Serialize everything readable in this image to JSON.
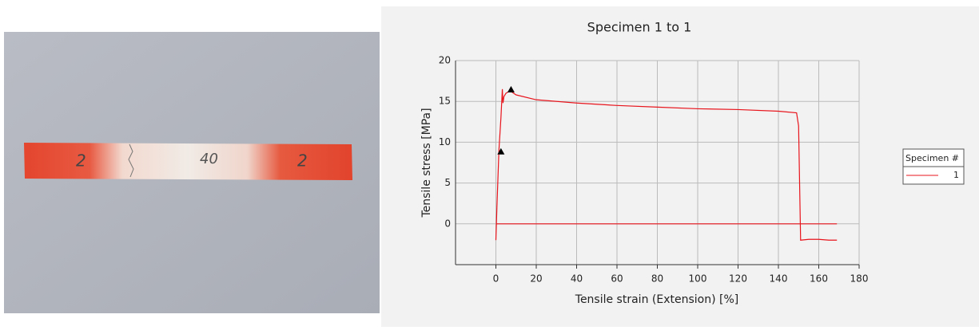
{
  "photo": {
    "marks": [
      "2",
      "40",
      "2"
    ]
  },
  "chart_data": {
    "type": "line",
    "title": "Specimen 1 to 1",
    "x_label": "Tensile strain (Extension) [%]",
    "y_label": "Tensile stress [MPa]",
    "x": [
      0,
      0.5,
      1.5,
      2.5,
      3.2,
      3.5,
      4,
      5,
      7,
      10,
      20,
      40,
      60,
      80,
      100,
      120,
      140,
      149,
      150,
      151,
      155,
      160,
      165,
      169,
      null,
      0,
      169
    ],
    "series": [
      {
        "name": "1",
        "color": "#e8141c",
        "values": [
          -2,
          2,
          9,
          13,
          16.5,
          14.8,
          15.6,
          16,
          16.3,
          15.8,
          15.2,
          14.8,
          14.5,
          14.3,
          14.1,
          14,
          13.8,
          13.6,
          12,
          -2,
          -1.9,
          -1.9,
          -2,
          -2,
          null,
          0,
          0
        ]
      }
    ],
    "markers": {
      "x": [
        2.5,
        7.5
      ],
      "values": [
        8.8,
        16.4
      ]
    },
    "legend_title": "Specimen #",
    "legend": "right",
    "xlim": [
      -20,
      180
    ],
    "xticks": [
      0,
      20,
      40,
      60,
      80,
      100,
      120,
      140,
      160,
      180
    ],
    "ylim": [
      -5,
      20
    ],
    "yticks": [
      0,
      5,
      10,
      15,
      20
    ],
    "grid": true
  }
}
